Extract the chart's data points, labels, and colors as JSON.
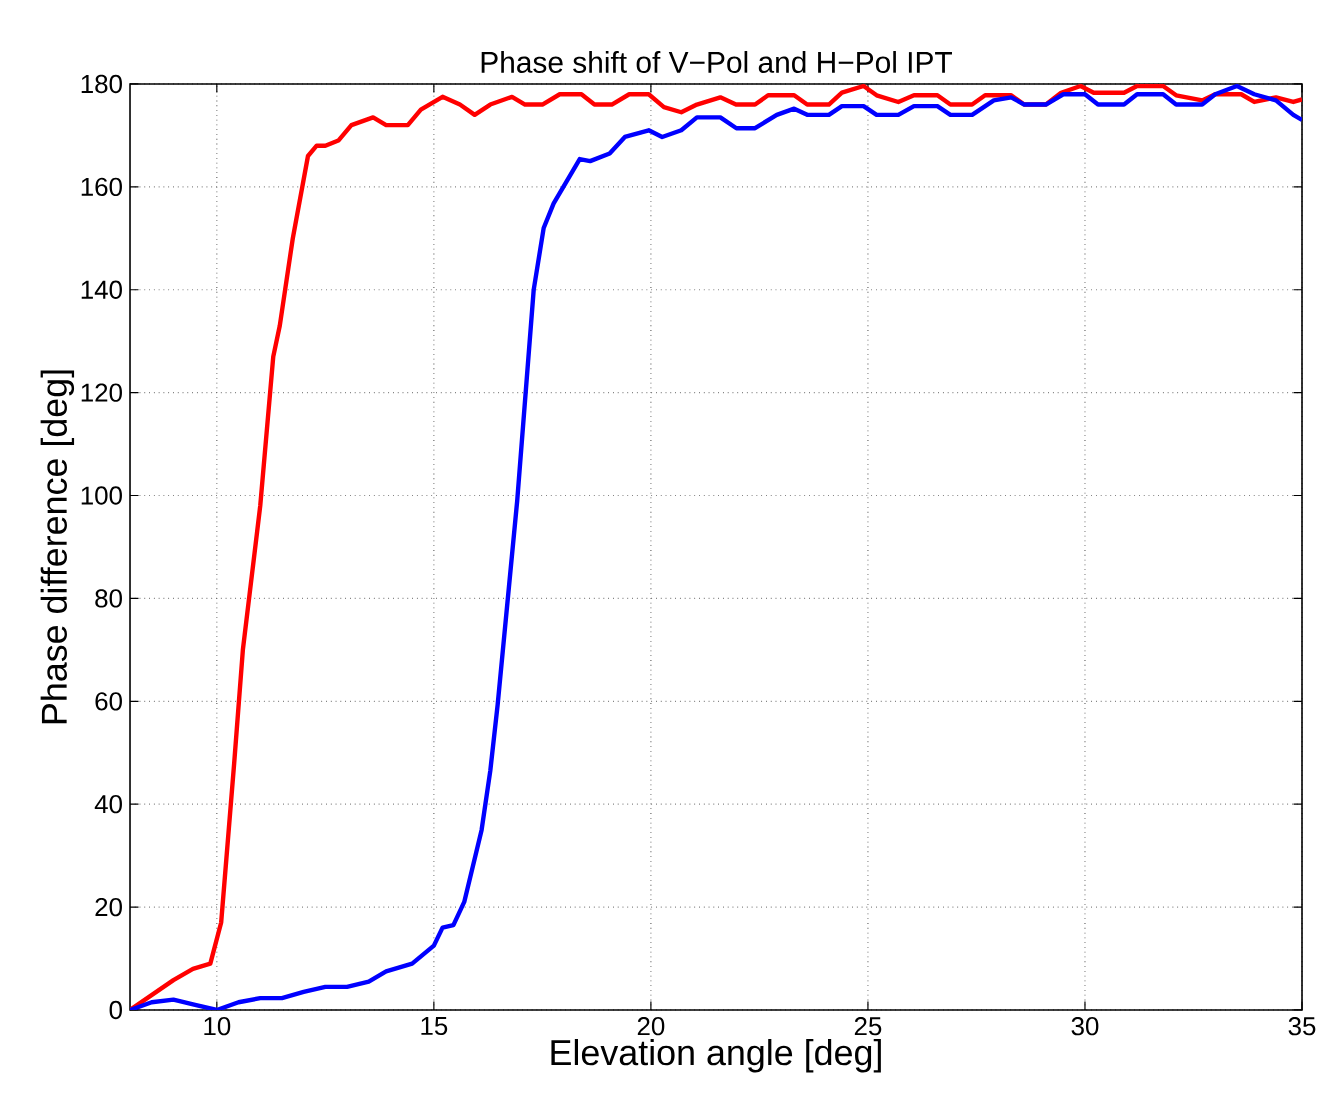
{
  "chart_data": {
    "type": "line",
    "title": "Phase shift of V−Pol and H−Pol IPT",
    "xlabel": "Elevation angle [deg]",
    "ylabel": "Phase difference [deg]",
    "xlim": [
      8,
      35
    ],
    "ylim": [
      0,
      180
    ],
    "xticks": [
      10,
      15,
      20,
      25,
      30,
      35
    ],
    "yticks": [
      0,
      20,
      40,
      60,
      80,
      100,
      120,
      140,
      160,
      180
    ],
    "grid": true,
    "marker": "none",
    "line_style": "solid",
    "series": [
      {
        "color": "#ff0000",
        "x": [
          8,
          9,
          9.45,
          9.85,
          10.1,
          10.4,
          10.6,
          11,
          11.3,
          11.45,
          11.75,
          12.1,
          12.3,
          12.5,
          12.8,
          13.1,
          13.6,
          13.9,
          14.4,
          14.7,
          15.2,
          15.6,
          15.94,
          16.3,
          16.8,
          17.1,
          17.5,
          17.9,
          18.4,
          18.7,
          19.1,
          19.5,
          19.95,
          20.3,
          20.7,
          21.06,
          21.6,
          21.96,
          22.4,
          22.7,
          23.3,
          23.6,
          24.1,
          24.4,
          24.9,
          25.2,
          25.7,
          26.06,
          26.6,
          26.9,
          27.4,
          27.7,
          28.3,
          28.6,
          29.1,
          29.45,
          29.9,
          30.2,
          30.9,
          31.2,
          31.8,
          32.1,
          32.7,
          33,
          33.6,
          33.9,
          34.4,
          34.8,
          35
        ],
        "values": [
          0,
          5.8,
          8,
          9,
          17,
          48,
          70,
          98,
          127,
          133,
          150,
          166,
          168,
          168,
          169,
          172,
          173.5,
          172,
          172,
          175,
          177.5,
          176,
          174,
          176,
          177.5,
          176,
          176,
          178,
          178,
          176,
          176,
          178,
          178,
          175.5,
          174.5,
          176,
          177.4,
          176,
          176,
          177.8,
          177.8,
          176,
          176,
          178.3,
          179.6,
          177.8,
          176.5,
          177.8,
          177.8,
          176,
          176,
          177.8,
          177.8,
          176,
          176,
          178.3,
          179.6,
          178.3,
          178.3,
          179.6,
          179.6,
          177.8,
          176.8,
          178,
          178,
          176.5,
          177.4,
          176.5,
          177
        ]
      },
      {
        "color": "#0000ff",
        "x": [
          8,
          8.5,
          9,
          9.5,
          10,
          10.5,
          11,
          11.5,
          12,
          12.5,
          13,
          13.5,
          13.9,
          14.5,
          15.0,
          15.2,
          15.45,
          15.7,
          16.1,
          16.3,
          16.47,
          16.92,
          17.3,
          17.53,
          17.76,
          18.36,
          18.6,
          19.05,
          19.4,
          19.95,
          20.26,
          20.7,
          21.06,
          21.6,
          21.97,
          22.4,
          22.9,
          23.3,
          23.6,
          24.1,
          24.4,
          24.9,
          25.2,
          25.7,
          26.06,
          26.6,
          26.9,
          27.4,
          27.9,
          28.3,
          28.6,
          29.1,
          29.5,
          30,
          30.3,
          30.9,
          31.2,
          31.8,
          32.1,
          32.7,
          33,
          33.5,
          33.9,
          34.4,
          34.8,
          35
        ],
        "values": [
          0,
          1.5,
          2,
          1,
          0,
          1.5,
          2.3,
          2.3,
          3.5,
          4.5,
          4.5,
          5.5,
          7.5,
          9,
          12.5,
          16,
          16.5,
          21,
          35,
          46.5,
          59.4,
          99,
          140,
          152,
          156.8,
          165.4,
          165,
          166.5,
          169.7,
          171,
          169.7,
          171,
          173.5,
          173.5,
          171.4,
          171.4,
          174,
          175.2,
          174,
          174,
          175.7,
          175.7,
          174,
          174,
          175.7,
          175.7,
          174,
          174,
          176.8,
          177.4,
          176,
          176,
          178,
          178,
          176,
          176,
          178,
          178,
          176,
          176,
          178,
          179.6,
          178,
          176.8,
          174,
          173
        ]
      }
    ]
  }
}
